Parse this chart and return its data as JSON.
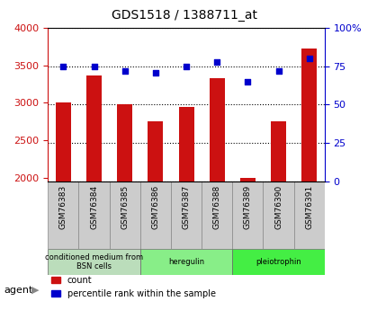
{
  "title": "GDS1518 / 1388711_at",
  "samples": [
    "GSM76383",
    "GSM76384",
    "GSM76385",
    "GSM76386",
    "GSM76387",
    "GSM76388",
    "GSM76389",
    "GSM76390",
    "GSM76391"
  ],
  "counts": [
    3000,
    3370,
    2980,
    2750,
    2950,
    3330,
    2000,
    2750,
    3720
  ],
  "percentiles": [
    75,
    75,
    72,
    71,
    75,
    78,
    65,
    72,
    80
  ],
  "ylim_left": [
    1950,
    4000
  ],
  "ylim_right": [
    0,
    100
  ],
  "yticks_left": [
    2000,
    2500,
    3000,
    3500,
    4000
  ],
  "yticks_right": [
    0,
    25,
    50,
    75,
    100
  ],
  "ytick_labels_right": [
    "0",
    "25",
    "50",
    "75",
    "100%"
  ],
  "bar_color": "#cc1111",
  "dot_color": "#0000cc",
  "grid_color": "#000000",
  "groups": [
    {
      "label": "conditioned medium from\nBSN cells",
      "start": 0,
      "end": 3,
      "color": "#bbddbb"
    },
    {
      "label": "heregulin",
      "start": 3,
      "end": 6,
      "color": "#88ee88"
    },
    {
      "label": "pleiotrophin",
      "start": 6,
      "end": 9,
      "color": "#44ee44"
    }
  ],
  "agent_label": "agent",
  "legend_count_label": "count",
  "legend_pct_label": "percentile rank within the sample",
  "bar_width": 0.5,
  "x_tick_fontsize": 7,
  "background_plot": "#ffffff",
  "background_xtick": "#cccccc"
}
